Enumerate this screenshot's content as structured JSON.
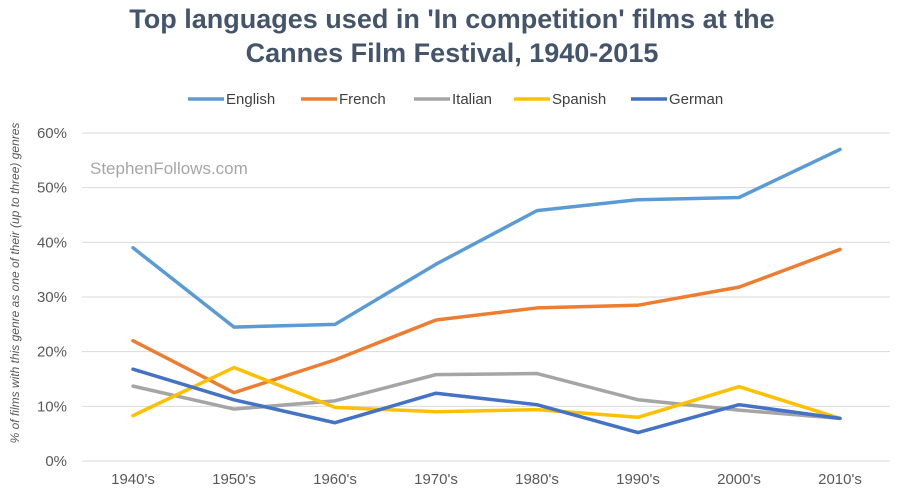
{
  "chart_data": {
    "type": "line",
    "title_lines": [
      "Top languages used in 'In competition' films at the",
      "Cannes Film Festival, 1940-2015"
    ],
    "watermark": "StephenFollows.com",
    "xlabel": "",
    "ylabel": "% of films with this genre as one of their (up to three) genres",
    "categories": [
      "1940's",
      "1950's",
      "1960's",
      "1970's",
      "1980's",
      "1990's",
      "2000's",
      "2010's"
    ],
    "yticks": [
      "0%",
      "10%",
      "20%",
      "30%",
      "40%",
      "50%",
      "60%"
    ],
    "ylim": [
      0,
      60
    ],
    "grid": true,
    "legend_position": "top",
    "series": [
      {
        "name": "English",
        "color": "#5b9bd5",
        "values": [
          39,
          24.5,
          25,
          36,
          45.8,
          47.8,
          48.2,
          57
        ]
      },
      {
        "name": "French",
        "color": "#ed7d31",
        "values": [
          22,
          12.5,
          18.5,
          25.8,
          28,
          28.5,
          31.8,
          38.7
        ]
      },
      {
        "name": "Italian",
        "color": "#a5a5a5",
        "values": [
          13.7,
          9.5,
          11,
          15.8,
          16,
          11.2,
          9.3,
          7.8
        ]
      },
      {
        "name": "Spanish",
        "color": "#ffc000",
        "values": [
          8.3,
          17.1,
          9.8,
          9,
          9.4,
          8,
          13.6,
          7.8
        ]
      },
      {
        "name": "German",
        "color": "#4472c4",
        "values": [
          16.8,
          11.2,
          7,
          12.4,
          10.3,
          5.2,
          10.3,
          7.8
        ]
      }
    ]
  }
}
